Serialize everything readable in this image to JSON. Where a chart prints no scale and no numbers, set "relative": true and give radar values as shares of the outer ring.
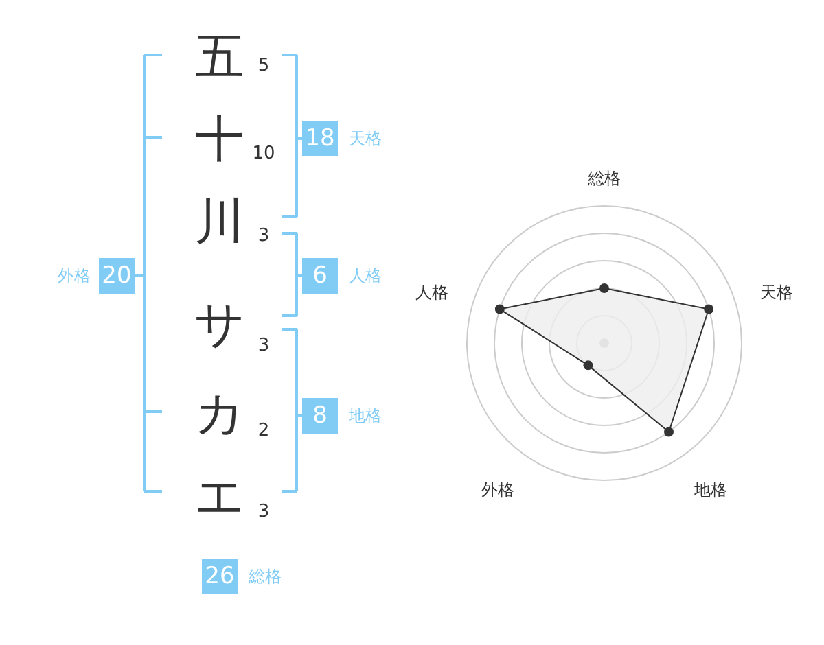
{
  "chart_data": [
    {
      "type": "other",
      "annotations": [
        "五",
        "5",
        "十",
        "10",
        "川",
        "3",
        "サ",
        "3",
        "カ",
        "2",
        "エ",
        "3",
        "18",
        "天格",
        "6",
        "人格",
        "8",
        "地格",
        "20",
        "外格",
        "26",
        "総格"
      ],
      "color": "#80ccf5"
    },
    {
      "type": "radar",
      "relative": true,
      "categories": [
        "総格",
        "天格",
        "地格",
        "外格",
        "人格"
      ],
      "series": [
        {
          "color": "#333333",
          "values": [
            0.4,
            0.8,
            0.8,
            0.2,
            0.8
          ]
        }
      ],
      "marker": "circle"
    }
  ]
}
